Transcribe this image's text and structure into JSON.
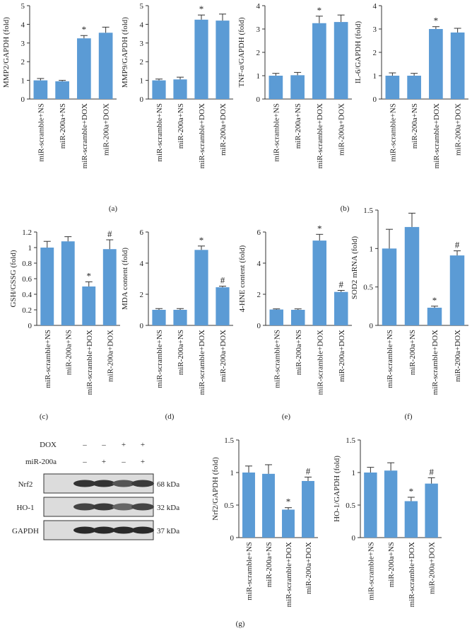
{
  "chart_data": [
    {
      "type": "bar",
      "ylabel": "MMP2/GAPDH (fold)",
      "categories": [
        "miR-scramble+NS",
        "miR-200a+NS",
        "miR-scramble+DOX",
        "miR-200a+DOX"
      ],
      "values": [
        1.0,
        0.95,
        3.25,
        3.55
      ],
      "errors": [
        0.1,
        0.05,
        0.15,
        0.3
      ],
      "markers": [
        null,
        null,
        "*",
        null
      ],
      "color": "#5b9bd5",
      "ylim": [
        0,
        5
      ],
      "yticks": [
        0,
        1,
        2,
        3,
        4,
        5
      ]
    },
    {
      "type": "bar",
      "ylabel": "MMP9/GAPDH (fold)",
      "categories": [
        "miR-scramble+NS",
        "miR-200a+NS",
        "miR-scramble+DOX",
        "miR-200a+DOX"
      ],
      "values": [
        1.0,
        1.05,
        4.25,
        4.2
      ],
      "errors": [
        0.07,
        0.12,
        0.25,
        0.35
      ],
      "markers": [
        null,
        null,
        "*",
        null
      ],
      "color": "#5b9bd5",
      "ylim": [
        0,
        5
      ],
      "yticks": [
        0,
        1,
        2,
        3,
        4,
        5
      ]
    },
    {
      "type": "bar",
      "ylabel": "TNF-α/GAPDH (fold)",
      "categories": [
        "miR-scramble+NS",
        "miR-200a+NS",
        "miR-scramble+DOX",
        "miR-200a+DOX"
      ],
      "values": [
        1.0,
        1.02,
        3.25,
        3.3
      ],
      "errors": [
        0.1,
        0.12,
        0.3,
        0.3
      ],
      "markers": [
        null,
        null,
        "*",
        null
      ],
      "color": "#5b9bd5",
      "ylim": [
        0,
        4
      ],
      "yticks": [
        0,
        1,
        2,
        3,
        4
      ]
    },
    {
      "type": "bar",
      "ylabel": "IL-6/GAPDH (fold)",
      "categories": [
        "miR-scramble+NS",
        "miR-200a+NS",
        "miR-scramble+DOX",
        "miR-200a+DOX"
      ],
      "values": [
        1.0,
        1.0,
        3.0,
        2.85
      ],
      "errors": [
        0.12,
        0.1,
        0.1,
        0.18
      ],
      "markers": [
        null,
        null,
        "*",
        null
      ],
      "color": "#5b9bd5",
      "ylim": [
        0,
        4
      ],
      "yticks": [
        0,
        1,
        2,
        3,
        4
      ]
    },
    {
      "type": "bar",
      "ylabel": "GSH/GSSG (fold)",
      "categories": [
        "miR-scramble+NS",
        "miR-200a+NS",
        "miR-scramble+DOX",
        "miR-200a+DOX"
      ],
      "values": [
        1.0,
        1.08,
        0.5,
        0.98
      ],
      "errors": [
        0.08,
        0.06,
        0.06,
        0.12
      ],
      "markers": [
        null,
        null,
        "*",
        "#"
      ],
      "color": "#5b9bd5",
      "ylim": [
        0,
        1.2
      ],
      "yticks": [
        0,
        0.2,
        0.4,
        0.6,
        0.8,
        1,
        1.2
      ]
    },
    {
      "type": "bar",
      "ylabel": "MDA content (fold)",
      "categories": [
        "miR-scramble+NS",
        "miR-200a+NS",
        "miR-scramble+DOX",
        "miR-200a+DOX"
      ],
      "values": [
        1.0,
        1.0,
        4.85,
        2.45
      ],
      "errors": [
        0.08,
        0.08,
        0.25,
        0.07
      ],
      "markers": [
        null,
        null,
        "*",
        "#"
      ],
      "color": "#5b9bd5",
      "ylim": [
        0,
        6
      ],
      "yticks": [
        0,
        2,
        4,
        6
      ]
    },
    {
      "type": "bar",
      "ylabel": "4-HNE content (fold)",
      "categories": [
        "miR-scramble+NS",
        "miR-200a+NS",
        "miR-scramble+DOX",
        "miR-200a+DOX"
      ],
      "values": [
        1.02,
        1.0,
        5.45,
        2.15
      ],
      "errors": [
        0.04,
        0.06,
        0.4,
        0.1
      ],
      "markers": [
        null,
        null,
        "*",
        "#"
      ],
      "color": "#5b9bd5",
      "ylim": [
        0,
        6
      ],
      "yticks": [
        0,
        2,
        4,
        6
      ]
    },
    {
      "type": "bar",
      "ylabel": "SOD2 mRNA (fold)",
      "categories": [
        "miR-scramble+NS",
        "miR-200a+NS",
        "miR-scramble+DOX",
        "miR-200a+DOX"
      ],
      "values": [
        1.0,
        1.28,
        0.23,
        0.91
      ],
      "errors": [
        0.25,
        0.18,
        0.02,
        0.06
      ],
      "markers": [
        null,
        null,
        "*",
        "#"
      ],
      "color": "#5b9bd5",
      "ylim": [
        0,
        1.5
      ],
      "yticks": [
        0,
        0.5,
        1,
        1.5
      ]
    },
    {
      "type": "bar",
      "ylabel": "Nrf2/GAPDH (fold)",
      "categories": [
        "miR-scramble+NS",
        "miR-200a+NS",
        "miR-scramble+DOX",
        "miR-200a+DOX"
      ],
      "values": [
        1.0,
        0.98,
        0.43,
        0.87
      ],
      "errors": [
        0.1,
        0.14,
        0.03,
        0.06
      ],
      "markers": [
        null,
        null,
        "*",
        "#"
      ],
      "color": "#5b9bd5",
      "ylim": [
        0,
        1.5
      ],
      "yticks": [
        0,
        0.5,
        1,
        1.5
      ]
    },
    {
      "type": "bar",
      "ylabel": "HO-1/GAPDH (fold)",
      "categories": [
        "miR-scramble+NS",
        "miR-200a+NS",
        "miR-scramble+DOX",
        "miR-200a+DOX"
      ],
      "values": [
        1.0,
        1.03,
        0.56,
        0.83
      ],
      "errors": [
        0.08,
        0.12,
        0.06,
        0.09
      ],
      "markers": [
        null,
        null,
        "*",
        "#"
      ],
      "color": "#5b9bd5",
      "ylim": [
        0,
        1.5
      ],
      "yticks": [
        0,
        0.5,
        1,
        1.5
      ]
    }
  ],
  "panel_labels": [
    "(a)",
    "(b)",
    "(c)",
    "(d)",
    "(e)",
    "(f)",
    "(g)"
  ],
  "blot": {
    "conditions": [
      {
        "label": "DOX",
        "marks": [
          "–",
          "–",
          "+",
          "+"
        ]
      },
      {
        "label": "miR-200a",
        "marks": [
          "–",
          "+",
          "–",
          "+"
        ]
      }
    ],
    "bands": [
      {
        "label": "Nrf2",
        "size": "68 kDa"
      },
      {
        "label": "HO-1",
        "size": "32 kDa"
      },
      {
        "label": "GAPDH",
        "size": "37 kDa"
      }
    ]
  }
}
